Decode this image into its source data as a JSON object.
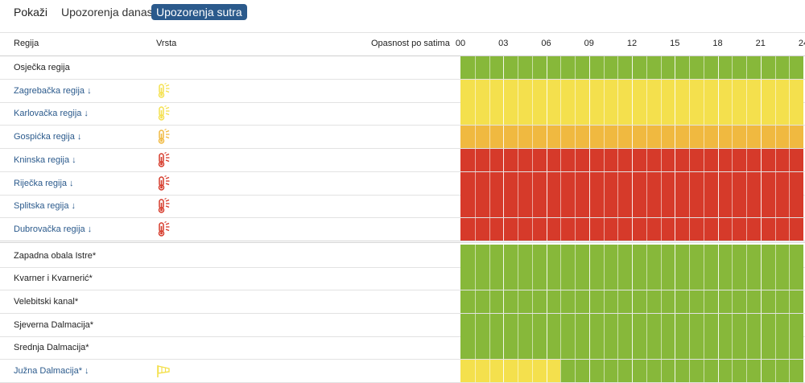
{
  "colors": {
    "green": "#87b83a",
    "yellow": "#f4e04d",
    "orange": "#f0b940",
    "red": "#d63a2a",
    "link": "#2b5a8c"
  },
  "filter": {
    "label": "Pokaži",
    "tabs": [
      {
        "label": "Upozorenja danas",
        "active": false
      },
      {
        "label": "Upozorenja sutra",
        "active": true
      }
    ]
  },
  "table": {
    "columns": {
      "region": "Regija",
      "type": "Vrsta",
      "hourly": "Opasnost po satima"
    },
    "hour_ticks": [
      "00",
      "03",
      "06",
      "09",
      "12",
      "15",
      "18",
      "21",
      "24"
    ],
    "rows": [
      {
        "name": "Osječka regija",
        "link": false,
        "icon": "",
        "segments": [
          {
            "hours": 24,
            "level": "green"
          }
        ]
      },
      {
        "name": "Zagrebačka regija",
        "link": true,
        "icon": "thermometer-yellow",
        "segments": [
          {
            "hours": 24,
            "level": "yellow"
          }
        ]
      },
      {
        "name": "Karlovačka regija",
        "link": true,
        "icon": "thermometer-yellow",
        "segments": [
          {
            "hours": 24,
            "level": "yellow"
          }
        ]
      },
      {
        "name": "Gospićka regija",
        "link": true,
        "icon": "thermometer-orange",
        "segments": [
          {
            "hours": 24,
            "level": "orange"
          }
        ]
      },
      {
        "name": "Kninska regija",
        "link": true,
        "icon": "thermometer-red",
        "segments": [
          {
            "hours": 24,
            "level": "red"
          }
        ]
      },
      {
        "name": "Riječka regija",
        "link": true,
        "icon": "thermometer-red",
        "segments": [
          {
            "hours": 24,
            "level": "red"
          }
        ]
      },
      {
        "name": "Splitska regija",
        "link": true,
        "icon": "thermometer-red",
        "segments": [
          {
            "hours": 24,
            "level": "red"
          }
        ]
      },
      {
        "name": "Dubrovačka regija",
        "link": true,
        "icon": "thermometer-red",
        "segments": [
          {
            "hours": 24,
            "level": "red"
          }
        ],
        "separator": true
      },
      {
        "name": "Zapadna obala Istre*",
        "link": false,
        "icon": "",
        "segments": [
          {
            "hours": 24,
            "level": "green"
          }
        ]
      },
      {
        "name": "Kvarner i Kvarnerić*",
        "link": false,
        "icon": "",
        "segments": [
          {
            "hours": 24,
            "level": "green"
          }
        ]
      },
      {
        "name": "Velebitski kanal*",
        "link": false,
        "icon": "",
        "segments": [
          {
            "hours": 24,
            "level": "green"
          }
        ]
      },
      {
        "name": "Sjeverna Dalmacija*",
        "link": false,
        "icon": "",
        "segments": [
          {
            "hours": 24,
            "level": "green"
          }
        ]
      },
      {
        "name": "Srednja Dalmacija*",
        "link": false,
        "icon": "",
        "segments": [
          {
            "hours": 24,
            "level": "green"
          }
        ]
      },
      {
        "name": "Južna Dalmacija*",
        "link": true,
        "icon": "windsock-yellow",
        "segments": [
          {
            "hours": 7,
            "level": "yellow"
          },
          {
            "hours": 17,
            "level": "green"
          }
        ]
      }
    ]
  }
}
